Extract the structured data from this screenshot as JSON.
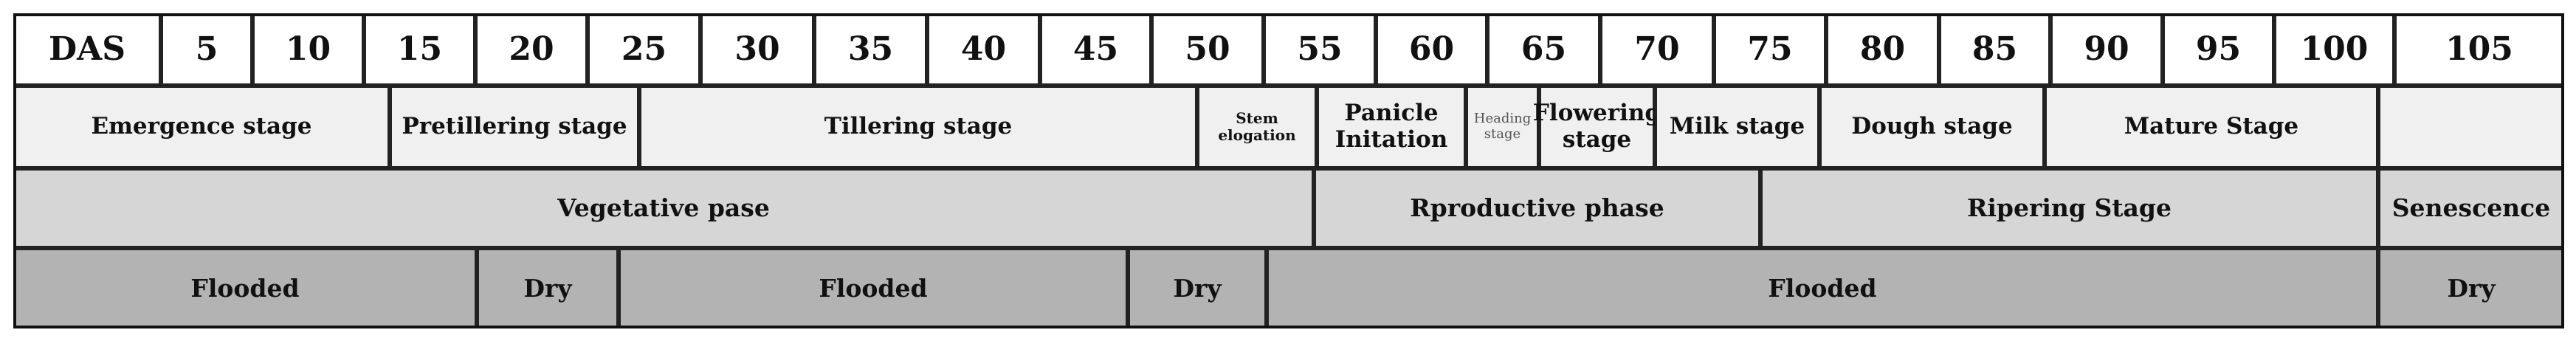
{
  "header": {
    "label": "DAS",
    "ticks": [
      "5",
      "10",
      "15",
      "20",
      "25",
      "30",
      "35",
      "40",
      "45",
      "50",
      "55",
      "60",
      "65",
      "70",
      "75",
      "80",
      "85",
      "90",
      "95",
      "100",
      "105"
    ]
  },
  "stages": [
    {
      "label": "Emergence stage",
      "style": "normal"
    },
    {
      "label": "Pretillering stage",
      "style": "normal"
    },
    {
      "label": "Tillering stage",
      "style": "normal"
    },
    {
      "label": "Stem elogation",
      "style": "small"
    },
    {
      "label": "Panicle Initation",
      "style": "normal"
    },
    {
      "label": "Heading stage",
      "style": "tiny"
    },
    {
      "label": "Flowering stage",
      "style": "normal"
    },
    {
      "label": "Milk stage",
      "style": "normal"
    },
    {
      "label": "Dough stage",
      "style": "normal"
    },
    {
      "label": "Mature Stage",
      "style": "normal"
    },
    {
      "label": "",
      "style": "normal"
    }
  ],
  "phases": [
    {
      "label": "Vegetative pase"
    },
    {
      "label": "Rproductive phase"
    },
    {
      "label": "Ripering Stage"
    },
    {
      "label": "Senescence"
    }
  ],
  "water": [
    {
      "label": "Flooded"
    },
    {
      "label": "Dry"
    },
    {
      "label": "Flooded"
    },
    {
      "label": "Dry"
    },
    {
      "label": "Flooded"
    },
    {
      "label": "Dry"
    }
  ],
  "colors": {
    "header_bg": "#ffffff",
    "stage_bg": "#f0f0f0",
    "phase_bg": "#d6d6d6",
    "water_bg": "#b3b3b3",
    "border": "#222222"
  }
}
